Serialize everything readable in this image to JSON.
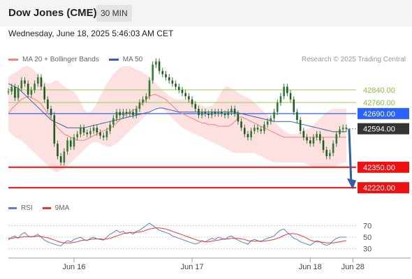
{
  "header": {
    "title": "Dow Jones (CME)",
    "interval": "30 MIN",
    "datetime": "Wednesday, June 18, 2025 5:46:03 AM CET"
  },
  "legend": {
    "ma20_label": "MA 20 + Bollinger Bands",
    "ma50_label": "MA 50",
    "credit": "Research © 2025 Trading Central"
  },
  "rsi_legend": {
    "rsi_label": "RSI",
    "ma_label": "9MA"
  },
  "colors": {
    "ma20": "#f4857a",
    "ma50": "#3a5fa8",
    "bands": "#fde0e0",
    "candle": "#2e7d32",
    "resistance": "#9acd57",
    "pivot": "#2962ff",
    "support": "#ee1111",
    "arrow": "#2e5fa8",
    "current": "#333333",
    "rsi": "#5b7fd6",
    "rsi_ma": "#e53935"
  },
  "chart_data": {
    "type": "line",
    "title": "Dow Jones (CME)",
    "ylim": [
      42150,
      42990
    ],
    "price_levels": [
      {
        "label": "42840.00",
        "value": 42840,
        "kind": "resistance"
      },
      {
        "label": "42760.00",
        "value": 42760,
        "kind": "resistance"
      },
      {
        "label": "42690.00",
        "value": 42690,
        "kind": "pivot"
      },
      {
        "label": "42594.00",
        "value": 42594,
        "kind": "current"
      },
      {
        "label": "42350.00",
        "value": 42350,
        "kind": "support"
      },
      {
        "label": "42220.00",
        "value": 42220,
        "kind": "support"
      }
    ],
    "x_ticks": [
      "Jun 16",
      "Jun 17",
      "Jun 18",
      "Jun 28"
    ],
    "x_tick_index": [
      20,
      56,
      92,
      105
    ],
    "close": [
      42830,
      42860,
      42790,
      42850,
      42900,
      42880,
      42810,
      42840,
      42880,
      42920,
      42860,
      42780,
      42720,
      42680,
      42500,
      42420,
      42380,
      42450,
      42520,
      42480,
      42540,
      42560,
      42600,
      42570,
      42560,
      42580,
      42600,
      42570,
      42550,
      42540,
      42580,
      42620,
      42660,
      42700,
      42680,
      42700,
      42690,
      42700,
      42680,
      42720,
      42760,
      42780,
      42800,
      42900,
      43000,
      43020,
      42960,
      42940,
      42920,
      42900,
      42880,
      42860,
      42840,
      42820,
      42800,
      42780,
      42750,
      42720,
      42680,
      42700,
      42690,
      42680,
      42700,
      42690,
      42700,
      42690,
      42680,
      42700,
      42720,
      42690,
      42640,
      42600,
      42560,
      42540,
      42580,
      42600,
      42590,
      42580,
      42620,
      42640,
      42660,
      42700,
      42760,
      42800,
      42860,
      42820,
      42780,
      42700,
      42650,
      42580,
      42540,
      42520,
      42500,
      42540,
      42560,
      42520,
      42460,
      42420,
      42440,
      42500,
      42560,
      42590,
      42600,
      42594
    ],
    "ma20": [
      42690,
      42720,
      42740,
      42760,
      42780,
      42790,
      42800,
      42790,
      42780,
      42770,
      42750,
      42720,
      42690,
      42660,
      42630,
      42600,
      42580,
      42560,
      42550,
      42540,
      42530,
      42520,
      42520,
      42520,
      42530,
      42540,
      42550,
      42560,
      42570,
      42580,
      42590,
      42600,
      42610,
      42630,
      42650,
      42670,
      42690,
      42700,
      42710,
      42720,
      42740,
      42760,
      42780,
      42800,
      42810,
      42810,
      42800,
      42790,
      42780,
      42760,
      42740,
      42720,
      42700,
      42690,
      42680,
      42670,
      42660,
      42650,
      42640,
      42630,
      42630,
      42620,
      42620,
      42620,
      42610,
      42610,
      42610,
      42610,
      42620,
      42640,
      42660,
      42670,
      42660,
      42650,
      42640,
      42630,
      42620,
      42610,
      42600,
      42590,
      42580,
      42570,
      42560,
      42550,
      42540,
      42540,
      42540,
      42540,
      42540,
      42540,
      42540,
      42540,
      42540,
      42540,
      42540,
      42540,
      42540,
      42540,
      42540,
      42540,
      42540,
      42540,
      42540,
      42540
    ],
    "upper": [
      42920,
      42940,
      42950,
      42960,
      42980,
      42990,
      42990,
      42980,
      42960,
      42940,
      42920,
      42890,
      42880,
      42880,
      42900,
      42900,
      42880,
      42860,
      42850,
      42840,
      42830,
      42800,
      42760,
      42720,
      42700,
      42700,
      42720,
      42760,
      42800,
      42840,
      42880,
      42910,
      42940,
      42960,
      42980,
      42990,
      42990,
      42990,
      42980,
      42970,
      42960,
      42950,
      42940,
      42920,
      42900,
      42880,
      42860,
      42840,
      42820,
      42800,
      42790,
      42780,
      42780,
      42780,
      42780,
      42780,
      42770,
      42760,
      42750,
      42740,
      42730,
      42730,
      42740,
      42760,
      42790,
      42830,
      42860,
      42860,
      42850,
      42840,
      42820,
      42810,
      42800,
      42790,
      42780,
      42760,
      42740,
      42720,
      42700,
      42680,
      42660,
      42640,
      42620,
      42600,
      42580,
      42570,
      42560,
      42560,
      42560,
      42570,
      42580,
      42590,
      42600,
      42620,
      42640,
      42660,
      42680,
      42700,
      42710,
      42720,
      42720,
      42720,
      42720,
      42720
    ],
    "lower": [
      42580,
      42560,
      42540,
      42530,
      42520,
      42500,
      42480,
      42460,
      42440,
      42420,
      42400,
      42380,
      42360,
      42340,
      42320,
      42320,
      42330,
      42340,
      42360,
      42380,
      42400,
      42420,
      42440,
      42460,
      42480,
      42500,
      42510,
      42510,
      42500,
      42490,
      42480,
      42480,
      42490,
      42500,
      42520,
      42540,
      42560,
      42580,
      42600,
      42620,
      42640,
      42660,
      42680,
      42700,
      42720,
      42730,
      42730,
      42720,
      42700,
      42680,
      42660,
      42640,
      42620,
      42600,
      42590,
      42580,
      42570,
      42560,
      42550,
      42540,
      42530,
      42520,
      42510,
      42500,
      42490,
      42480,
      42470,
      42460,
      42450,
      42440,
      42440,
      42440,
      42440,
      42440,
      42440,
      42440,
      42430,
      42420,
      42410,
      42400,
      42390,
      42380,
      42380,
      42380,
      42380,
      42380,
      42380,
      42380,
      42380,
      42380,
      42380,
      42370,
      42360,
      42350,
      42350,
      42350,
      42350,
      42350,
      42350,
      42350,
      42360,
      42370,
      42380,
      42380
    ],
    "ma50": [
      42880,
      42870,
      42860,
      42850,
      42830,
      42810,
      42790,
      42770,
      42750,
      42730,
      42710,
      42690,
      42670,
      42650,
      42640,
      42630,
      42620,
      42610,
      42600,
      42600,
      42600,
      42600,
      42600,
      42600,
      42605,
      42610,
      42615,
      42620,
      42625,
      42630,
      42635,
      42640,
      42645,
      42650,
      42655,
      42660,
      42665,
      42670,
      42675,
      42680,
      42685,
      42690,
      42695,
      42700,
      42710,
      42720,
      42725,
      42725,
      42720,
      42715,
      42710,
      42705,
      42700,
      42700,
      42700,
      42700,
      42700,
      42700,
      42700,
      42700,
      42700,
      42700,
      42700,
      42700,
      42700,
      42700,
      42700,
      42700,
      42700,
      42700,
      42695,
      42690,
      42685,
      42680,
      42675,
      42670,
      42665,
      42660,
      42655,
      42650,
      42645,
      42640,
      42640,
      42640,
      42640,
      42640,
      42640,
      42635,
      42630,
      42625,
      42620,
      42615,
      42610,
      42605,
      42600,
      42595,
      42590,
      42585,
      42580,
      42575,
      42575,
      42575,
      42575,
      42575
    ],
    "rsi": {
      "ylim": [
        20,
        80
      ],
      "ticks": [
        70,
        50,
        30
      ],
      "rsi": [
        45,
        50,
        52,
        48,
        55,
        58,
        52,
        50,
        52,
        55,
        50,
        45,
        42,
        40,
        38,
        36,
        35,
        40,
        44,
        42,
        46,
        48,
        50,
        46,
        44,
        48,
        50,
        47,
        46,
        45,
        50,
        55,
        58,
        62,
        58,
        60,
        56,
        58,
        55,
        60,
        62,
        66,
        70,
        74,
        70,
        66,
        62,
        60,
        58,
        56,
        52,
        50,
        48,
        46,
        44,
        42,
        40,
        38,
        40,
        44,
        42,
        45,
        48,
        46,
        50,
        48,
        46,
        50,
        52,
        48,
        45,
        42,
        40,
        38,
        44,
        46,
        44,
        42,
        46,
        48,
        50,
        52,
        58,
        62,
        64,
        58,
        54,
        48,
        46,
        42,
        40,
        38,
        36,
        40,
        44,
        42,
        38,
        36,
        38,
        44,
        48,
        50,
        50,
        50
      ],
      "ma": [
        48,
        48,
        49,
        49,
        50,
        51,
        51,
        51,
        51,
        52,
        51,
        50,
        49,
        47,
        45,
        43,
        41,
        40,
        40,
        40,
        41,
        42,
        44,
        45,
        45,
        46,
        47,
        47,
        47,
        46,
        47,
        48,
        50,
        52,
        54,
        56,
        57,
        58,
        58,
        58,
        59,
        60,
        62,
        64,
        65,
        66,
        66,
        65,
        64,
        62,
        60,
        58,
        56,
        54,
        52,
        50,
        48,
        46,
        44,
        43,
        42,
        42,
        43,
        44,
        45,
        46,
        47,
        47,
        48,
        48,
        48,
        47,
        46,
        44,
        43,
        43,
        43,
        43,
        43,
        44,
        45,
        46,
        48,
        50,
        53,
        55,
        56,
        56,
        55,
        53,
        51,
        48,
        45,
        43,
        42,
        42,
        41,
        40,
        40,
        40,
        41,
        42,
        43,
        44
      ]
    }
  }
}
